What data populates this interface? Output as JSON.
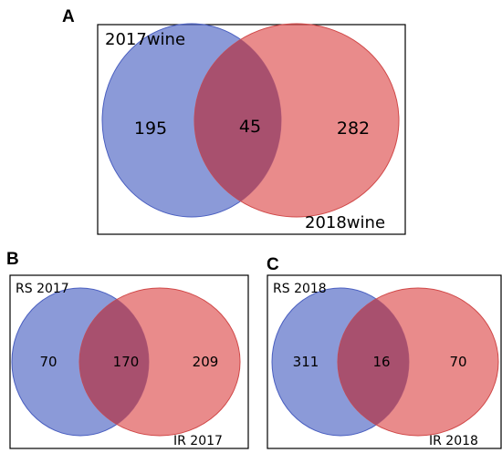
{
  "colors": {
    "left_set": "#5a6fc8",
    "right_set": "#e05a5a",
    "overlap": "#a8506e",
    "frame": "#000000"
  },
  "panels": [
    {
      "letter": "A",
      "left_label": "2017wine",
      "right_label": "2018wine",
      "left_only": "195",
      "overlap": "45",
      "right_only": "282"
    },
    {
      "letter": "B",
      "left_label": "RS 2017",
      "right_label": "IR 2017",
      "left_only": "70",
      "overlap": "170",
      "right_only": "209"
    },
    {
      "letter": "C",
      "left_label": "RS 2018",
      "right_label": "IR 2018",
      "left_only": "311",
      "overlap": "16",
      "right_only": "70"
    }
  ]
}
